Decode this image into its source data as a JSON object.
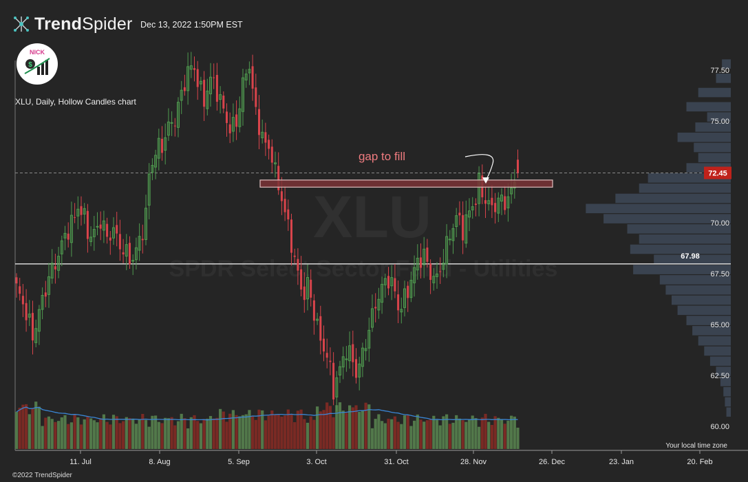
{
  "brand": {
    "name_bold": "Trend",
    "name_thin": "Spider",
    "timestamp": "Dec 13, 2022 1:50PM EST",
    "copyright": "©2022 TrendSpider",
    "logo_text": "NICK"
  },
  "chart_info": {
    "description": "XLU, Daily, Hollow Candles chart",
    "watermark_symbol": "XLU",
    "watermark_name": "SPDR Select Sector Fund - Utilities",
    "timezone_note": "Your local time zone"
  },
  "colors": {
    "background": "#252525",
    "bull": "#4f9a4f",
    "bear": "#d9444b",
    "volume_bull": "#52784a",
    "volume_bear": "#7a2a24",
    "volume_ma": "#3a86d6",
    "volume_profile": "#3b4452",
    "gap_box_fill": "#7a3236",
    "annotation_text": "#f07c80",
    "price_tag": "#c0221b"
  },
  "annotations": {
    "gap_label": "gap to fill",
    "gap_zone": [
      71.75,
      72.1
    ],
    "support_value": "67.98",
    "last_price_label": "72.45"
  },
  "chart_data": {
    "type": "candlestick",
    "symbol": "XLU",
    "interval": "Daily",
    "y_axis": {
      "ticks": [
        "77.50",
        "75.00",
        "72.50",
        "70.00",
        "67.50",
        "65.00",
        "62.50",
        "60.00"
      ],
      "ylim": [
        59.5,
        78.6
      ]
    },
    "x_axis": {
      "ticks": [
        "11. Jul",
        "8. Aug",
        "5. Sep",
        "3. Oct",
        "31. Oct",
        "28. Nov",
        "26. Dec",
        "23. Jan",
        "20. Feb"
      ]
    },
    "close_path": [
      [
        0,
        66.8
      ],
      [
        3,
        65.6
      ],
      [
        5,
        64.4
      ],
      [
        8,
        66.2
      ],
      [
        10,
        67.3
      ],
      [
        13,
        68.4
      ],
      [
        15,
        69.4
      ],
      [
        17,
        69.9
      ],
      [
        19,
        70.8
      ],
      [
        21,
        70.2
      ],
      [
        23,
        69.2
      ],
      [
        26,
        70.1
      ],
      [
        28,
        69.3
      ],
      [
        30,
        69.6
      ],
      [
        33,
        68.6
      ],
      [
        35,
        68.3
      ],
      [
        36,
        68.2
      ],
      [
        38,
        69.1
      ],
      [
        40,
        70.3
      ],
      [
        41,
        72.4
      ],
      [
        43,
        73.5
      ],
      [
        45,
        73.8
      ],
      [
        47,
        74.7
      ],
      [
        49,
        75.1
      ],
      [
        51,
        76.3
      ],
      [
        53,
        77.5
      ],
      [
        55,
        77.6
      ],
      [
        57,
        76.4
      ],
      [
        58,
        76.0
      ],
      [
        60,
        77.1
      ],
      [
        62,
        76.5
      ],
      [
        64,
        75.5
      ],
      [
        66,
        74.6
      ],
      [
        68,
        74.9
      ],
      [
        70,
        76.8
      ],
      [
        72,
        77.8
      ],
      [
        74,
        75.3
      ],
      [
        75,
        74.8
      ],
      [
        77,
        73.8
      ],
      [
        79,
        73.4
      ],
      [
        80,
        72.4
      ],
      [
        82,
        71.2
      ],
      [
        84,
        69.8
      ],
      [
        85,
        69.0
      ],
      [
        87,
        67.4
      ],
      [
        89,
        66.4
      ],
      [
        90,
        67.0
      ],
      [
        92,
        65.6
      ],
      [
        94,
        64.2
      ],
      [
        96,
        63.5
      ],
      [
        98,
        61.8
      ],
      [
        100,
        62.8
      ],
      [
        102,
        63.8
      ],
      [
        104,
        63.2
      ],
      [
        105,
        62.6
      ],
      [
        107,
        63.5
      ],
      [
        109,
        64.8
      ],
      [
        111,
        66.0
      ],
      [
        113,
        66.8
      ],
      [
        115,
        67.3
      ],
      [
        117,
        66.6
      ],
      [
        118,
        65.8
      ],
      [
        120,
        66.2
      ],
      [
        122,
        67.2
      ],
      [
        124,
        68.1
      ],
      [
        126,
        68.4
      ],
      [
        128,
        67.5
      ],
      [
        130,
        67.2
      ],
      [
        132,
        68.3
      ],
      [
        134,
        69.4
      ],
      [
        136,
        70.3
      ],
      [
        138,
        69.7
      ],
      [
        140,
        70.5
      ],
      [
        142,
        71.2
      ],
      [
        143,
        71.9
      ],
      [
        145,
        71.1
      ],
      [
        147,
        70.7
      ],
      [
        149,
        71.1
      ],
      [
        151,
        71.0
      ],
      [
        153,
        71.5
      ],
      [
        155,
        72.45
      ]
    ],
    "last_candle": {
      "open": 73.1,
      "high": 73.6,
      "low": 72.2,
      "close": 72.45
    },
    "horizontal_level": 67.98,
    "volume_profile_rows": [
      [
        77.8,
        0.06
      ],
      [
        77.1,
        0.1
      ],
      [
        76.4,
        0.22
      ],
      [
        75.7,
        0.3
      ],
      [
        75.2,
        0.16
      ],
      [
        74.7,
        0.24
      ],
      [
        74.2,
        0.36
      ],
      [
        73.7,
        0.25
      ],
      [
        73.2,
        0.22
      ],
      [
        72.7,
        0.3
      ],
      [
        72.2,
        0.56
      ],
      [
        71.7,
        0.62
      ],
      [
        71.2,
        0.78
      ],
      [
        70.7,
        0.98
      ],
      [
        70.2,
        0.86
      ],
      [
        69.7,
        0.7
      ],
      [
        69.2,
        0.62
      ],
      [
        68.7,
        0.68
      ],
      [
        68.2,
        0.52
      ],
      [
        67.7,
        0.66
      ],
      [
        67.2,
        0.48
      ],
      [
        66.7,
        0.44
      ],
      [
        66.2,
        0.4
      ],
      [
        65.7,
        0.36
      ],
      [
        65.2,
        0.3
      ],
      [
        64.7,
        0.26
      ],
      [
        64.2,
        0.22
      ],
      [
        63.7,
        0.18
      ],
      [
        63.2,
        0.14
      ],
      [
        62.7,
        0.1
      ],
      [
        62.2,
        0.07
      ],
      [
        61.7,
        0.05
      ],
      [
        61.2,
        0.04
      ],
      [
        60.7,
        0.03
      ]
    ]
  }
}
